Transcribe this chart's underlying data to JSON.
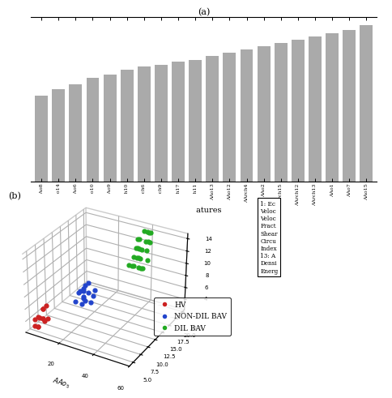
{
  "bar_labels": [
    "AAo8",
    "AAo14",
    "AAo6",
    "AAo10",
    "AAo9",
    "AArch10",
    "AArch6",
    "AArch9",
    "AArch17",
    "AArch11",
    "AAo13",
    "AAo12",
    "AArch4",
    "AAo2",
    "AArch15",
    "AArch12",
    "AArch13",
    "AAo1",
    "AAo7",
    "AAo15"
  ],
  "bar_values": [
    0.52,
    0.56,
    0.59,
    0.63,
    0.65,
    0.68,
    0.7,
    0.71,
    0.73,
    0.74,
    0.76,
    0.78,
    0.8,
    0.82,
    0.84,
    0.86,
    0.88,
    0.9,
    0.92,
    0.95
  ],
  "bar_color": "#aaaaaa",
  "title_a": "(a)",
  "xlabel_a": "Features",
  "title_b": "(b)",
  "xlabel_b": "$AAo_5$",
  "hv_x": [
    3,
    4,
    5,
    4,
    6,
    5,
    3,
    4,
    5,
    6,
    4,
    5,
    3
  ],
  "hv_y": [
    5,
    6,
    5,
    7,
    6,
    8,
    6,
    7,
    5,
    6,
    8,
    7,
    5
  ],
  "hv_z": [
    3,
    4,
    3,
    5,
    4,
    3,
    4,
    5,
    3,
    4,
    5,
    3,
    4
  ],
  "ndil_x": [
    18,
    22,
    25,
    20,
    23,
    19,
    21,
    24,
    22,
    20,
    18,
    23,
    21,
    19,
    22
  ],
  "ndil_y": [
    10,
    12,
    11,
    13,
    10,
    12,
    11,
    13,
    10,
    12,
    11,
    13,
    10,
    12,
    11
  ],
  "ndil_z": [
    6,
    7,
    6,
    8,
    7,
    6,
    8,
    7,
    6,
    8,
    7,
    6,
    8,
    7,
    6
  ],
  "dil_x": [
    35,
    38,
    40,
    42,
    37,
    39,
    41,
    36,
    40,
    38,
    42,
    37,
    39,
    41,
    43,
    36,
    40,
    38,
    35,
    42,
    37,
    39,
    44,
    36,
    41
  ],
  "dil_y": [
    18,
    20,
    19,
    21,
    18,
    20,
    22,
    19,
    21,
    18,
    20,
    22,
    19,
    21,
    18,
    20,
    22,
    19,
    21,
    18,
    20,
    22,
    19,
    21,
    18
  ],
  "dil_z": [
    10,
    12,
    11,
    13,
    10,
    12,
    14,
    11,
    13,
    10,
    12,
    14,
    11,
    13,
    10,
    12,
    14,
    11,
    13,
    10,
    12,
    14,
    11,
    13,
    10
  ],
  "hv_color": "#cc2222",
  "non_dil_bav_color": "#2244cc",
  "dil_bav_color": "#22aa22",
  "text_box": "1: Ec\nVeloc\nVeloc\nFract\nShear\nCircu\nIndex\n13: A\nDensi\nEnerg"
}
